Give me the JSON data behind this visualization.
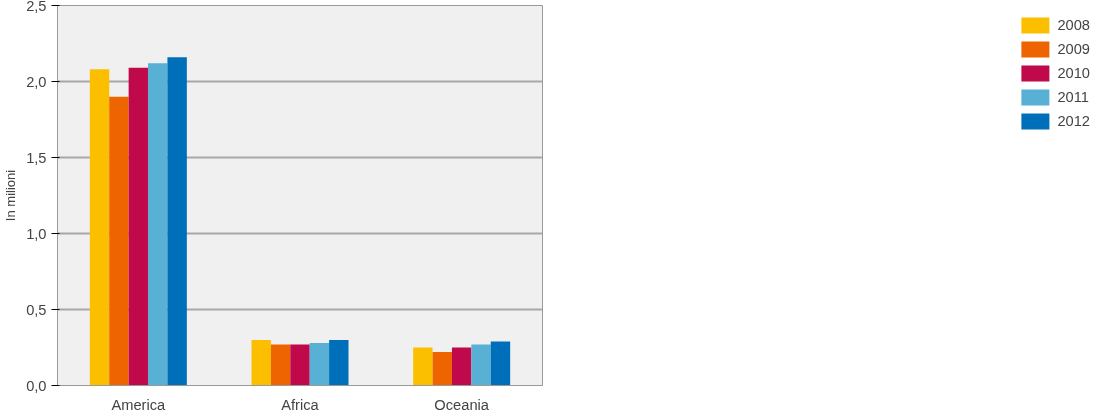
{
  "chart_data": {
    "type": "bar",
    "ylabel": "In milioni",
    "categories": [
      "America",
      "Africa",
      "Oceania"
    ],
    "series": [
      {
        "name": "2008",
        "color": "#fbbf00",
        "values": [
          2.08,
          0.3,
          0.25
        ]
      },
      {
        "name": "2009",
        "color": "#ee6400",
        "values": [
          1.9,
          0.27,
          0.22
        ]
      },
      {
        "name": "2010",
        "color": "#c0094a",
        "values": [
          2.09,
          0.27,
          0.25
        ]
      },
      {
        "name": "2011",
        "color": "#58b0d5",
        "values": [
          2.12,
          0.28,
          0.27
        ]
      },
      {
        "name": "2012",
        "color": "#006fb9",
        "values": [
          2.16,
          0.3,
          0.29
        ]
      }
    ],
    "ylim": [
      0,
      2.5
    ],
    "yticks": [
      {
        "value": 0,
        "label": "0,0"
      },
      {
        "value": 0.5,
        "label": "0,5"
      },
      {
        "value": 1,
        "label": "1,0"
      },
      {
        "value": 1.5,
        "label": "1,5"
      },
      {
        "value": 2,
        "label": "2,0"
      },
      {
        "value": 2.5,
        "label": "2,5"
      }
    ],
    "grid": "y",
    "legend": "top right"
  }
}
